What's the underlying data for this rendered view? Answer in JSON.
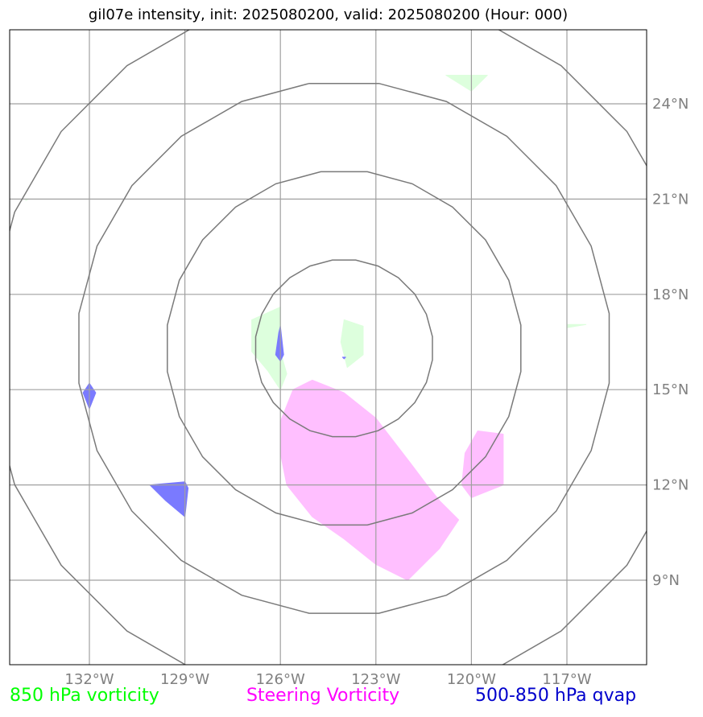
{
  "title": "gil07e intensity, init: 2025080200, valid: 2025080200 (Hour: 000)",
  "chart_data": {
    "type": "map",
    "projection": "lon/lat",
    "xlim": [
      -135,
      -115
    ],
    "ylim": [
      6.9,
      26.5
    ],
    "grid": true,
    "lon_ticks": [
      {
        "value": -132,
        "label": "132°W"
      },
      {
        "value": -129,
        "label": "129°W"
      },
      {
        "value": -126,
        "label": "126°W"
      },
      {
        "value": -123,
        "label": "123°W"
      },
      {
        "value": -120,
        "label": "120°W"
      },
      {
        "value": -117,
        "label": "117°W"
      }
    ],
    "lat_ticks": [
      {
        "value": 24,
        "label": "24°N"
      },
      {
        "value": 21,
        "label": "21°N"
      },
      {
        "value": 18,
        "label": "18°N"
      },
      {
        "value": 15,
        "label": "15°N"
      },
      {
        "value": 12,
        "label": "12°N"
      },
      {
        "value": 9,
        "label": "9°N"
      }
    ],
    "range_rings": {
      "center": [
        -124.0,
        16.3
      ],
      "radii_deg": [
        2.8,
        5.6,
        8.4,
        11.2
      ]
    },
    "fields": [
      {
        "name": "850 hPa vorticity",
        "color": "#00ff00",
        "fill": "#ddffdd",
        "polygons": [
          [
            [
              -126.0,
              17.6
            ],
            [
              -126.9,
              17.2
            ],
            [
              -126.9,
              16.2
            ],
            [
              -126.4,
              15.6
            ],
            [
              -126.0,
              15.0
            ],
            [
              -125.8,
              15.5
            ],
            [
              -126.0,
              16.2
            ]
          ],
          [
            [
              -124.0,
              17.2
            ],
            [
              -123.4,
              17.0
            ],
            [
              -123.4,
              16.1
            ],
            [
              -123.9,
              15.7
            ],
            [
              -124.1,
              16.5
            ]
          ],
          [
            [
              -120.8,
              24.9
            ],
            [
              -119.5,
              24.9
            ],
            [
              -120.0,
              24.4
            ]
          ],
          [
            [
              -117.0,
              17.05
            ],
            [
              -116.4,
              17.05
            ],
            [
              -117.0,
              16.95
            ]
          ],
          [
            [
              -134.0,
              21.0
            ],
            [
              -133.9,
              21.0
            ],
            [
              -134.0,
              20.96
            ]
          ]
        ]
      },
      {
        "name": "Steering Vorticity",
        "color": "#ff00ff",
        "fill": "#ffbfff",
        "polygons": [
          [
            [
              -125.6,
              15.0
            ],
            [
              -125.0,
              15.3
            ],
            [
              -124.0,
              14.9
            ],
            [
              -123.0,
              14.1
            ],
            [
              -122.0,
              12.8
            ],
            [
              -121.4,
              12.0
            ],
            [
              -121.0,
              11.5
            ],
            [
              -120.4,
              10.9
            ],
            [
              -121.0,
              10.0
            ],
            [
              -122.0,
              9.0
            ],
            [
              -123.0,
              9.5
            ],
            [
              -124.0,
              10.3
            ],
            [
              -125.0,
              11.0
            ],
            [
              -125.8,
              12.0
            ],
            [
              -126.0,
              13.0
            ],
            [
              -126.0,
              14.0
            ]
          ],
          [
            [
              -119.8,
              13.7
            ],
            [
              -119.0,
              13.6
            ],
            [
              -119.0,
              12.0
            ],
            [
              -120.0,
              11.6
            ],
            [
              -120.3,
              12.0
            ],
            [
              -120.2,
              13.0
            ]
          ]
        ]
      },
      {
        "name": "500-850 hPa qvap",
        "color": "#0000cc",
        "fill": "#7a7aff",
        "polygons": [
          [
            [
              -126.0,
              17.0
            ],
            [
              -125.9,
              16.1
            ],
            [
              -126.0,
              15.9
            ],
            [
              -126.15,
              16.1
            ],
            [
              -126.05,
              16.8
            ]
          ],
          [
            [
              -132.0,
              15.2
            ],
            [
              -131.8,
              14.9
            ],
            [
              -132.0,
              14.4
            ],
            [
              -132.2,
              14.9
            ]
          ],
          [
            [
              -130.1,
              12.0
            ],
            [
              -129.0,
              12.1
            ],
            [
              -128.9,
              11.9
            ],
            [
              -129.0,
              11.0
            ],
            [
              -129.6,
              11.5
            ]
          ],
          [
            [
              -124.05,
              16.02
            ],
            [
              -123.95,
              16.02
            ],
            [
              -124.0,
              15.97
            ]
          ]
        ]
      }
    ]
  },
  "legend": [
    {
      "label": "850 hPa vorticity",
      "color": "#00ff00"
    },
    {
      "label": "Steering Vorticity",
      "color": "#ff00ff"
    },
    {
      "label": "500-850 hPa qvap",
      "color": "#0000cc"
    }
  ]
}
